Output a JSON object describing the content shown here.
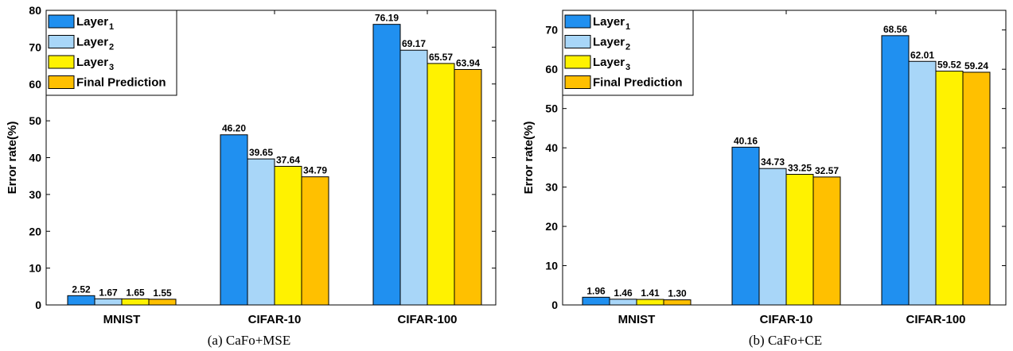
{
  "chart_data": [
    {
      "type": "bar",
      "caption": "(a) CaFo+MSE",
      "ylabel": "Error rate(%)",
      "ylim": [
        0,
        80
      ],
      "yticks": [
        0,
        10,
        20,
        30,
        40,
        50,
        60,
        70,
        80
      ],
      "categories": [
        "MNIST",
        "CIFAR-10",
        "CIFAR-100"
      ],
      "series": [
        {
          "name": "Layer",
          "sub": "1",
          "color": "#2090f0",
          "values": [
            2.52,
            46.2,
            76.19
          ],
          "labels": [
            "2.52",
            "46.20",
            "76.19"
          ]
        },
        {
          "name": "Layer",
          "sub": "2",
          "color": "#a8d6f8",
          "values": [
            1.67,
            39.65,
            69.17
          ],
          "labels": [
            "1.67",
            "39.65",
            "69.17"
          ]
        },
        {
          "name": "Layer",
          "sub": "3",
          "color": "#fff200",
          "values": [
            1.65,
            37.64,
            65.57
          ],
          "labels": [
            "1.65",
            "37.64",
            "65.57"
          ]
        },
        {
          "name": "Final Prediction",
          "sub": "",
          "color": "#ffc000",
          "values": [
            1.55,
            34.79,
            63.94
          ],
          "labels": [
            "1.55",
            "34.79",
            "63.94"
          ]
        }
      ],
      "legend": "top-left",
      "grid": false
    },
    {
      "type": "bar",
      "caption": "(b) CaFo+CE",
      "ylabel": "Error rate(%)",
      "ylim": [
        0,
        75
      ],
      "yticks": [
        0,
        10,
        20,
        30,
        40,
        50,
        60,
        70
      ],
      "categories": [
        "MNIST",
        "CIFAR-10",
        "CIFAR-100"
      ],
      "series": [
        {
          "name": "Layer",
          "sub": "1",
          "color": "#2090f0",
          "values": [
            1.96,
            40.16,
            68.56
          ],
          "labels": [
            "1.96",
            "40.16",
            "68.56"
          ]
        },
        {
          "name": "Layer",
          "sub": "2",
          "color": "#a8d6f8",
          "values": [
            1.46,
            34.73,
            62.01
          ],
          "labels": [
            "1.46",
            "34.73",
            "62.01"
          ]
        },
        {
          "name": "Layer",
          "sub": "3",
          "color": "#fff200",
          "values": [
            1.41,
            33.25,
            59.52
          ],
          "labels": [
            "1.41",
            "33.25",
            "59.52"
          ]
        },
        {
          "name": "Final Prediction",
          "sub": "",
          "color": "#ffc000",
          "values": [
            1.3,
            32.57,
            59.24
          ],
          "labels": [
            "1.30",
            "32.57",
            "59.24"
          ]
        }
      ],
      "legend": "top-left",
      "grid": false
    }
  ]
}
